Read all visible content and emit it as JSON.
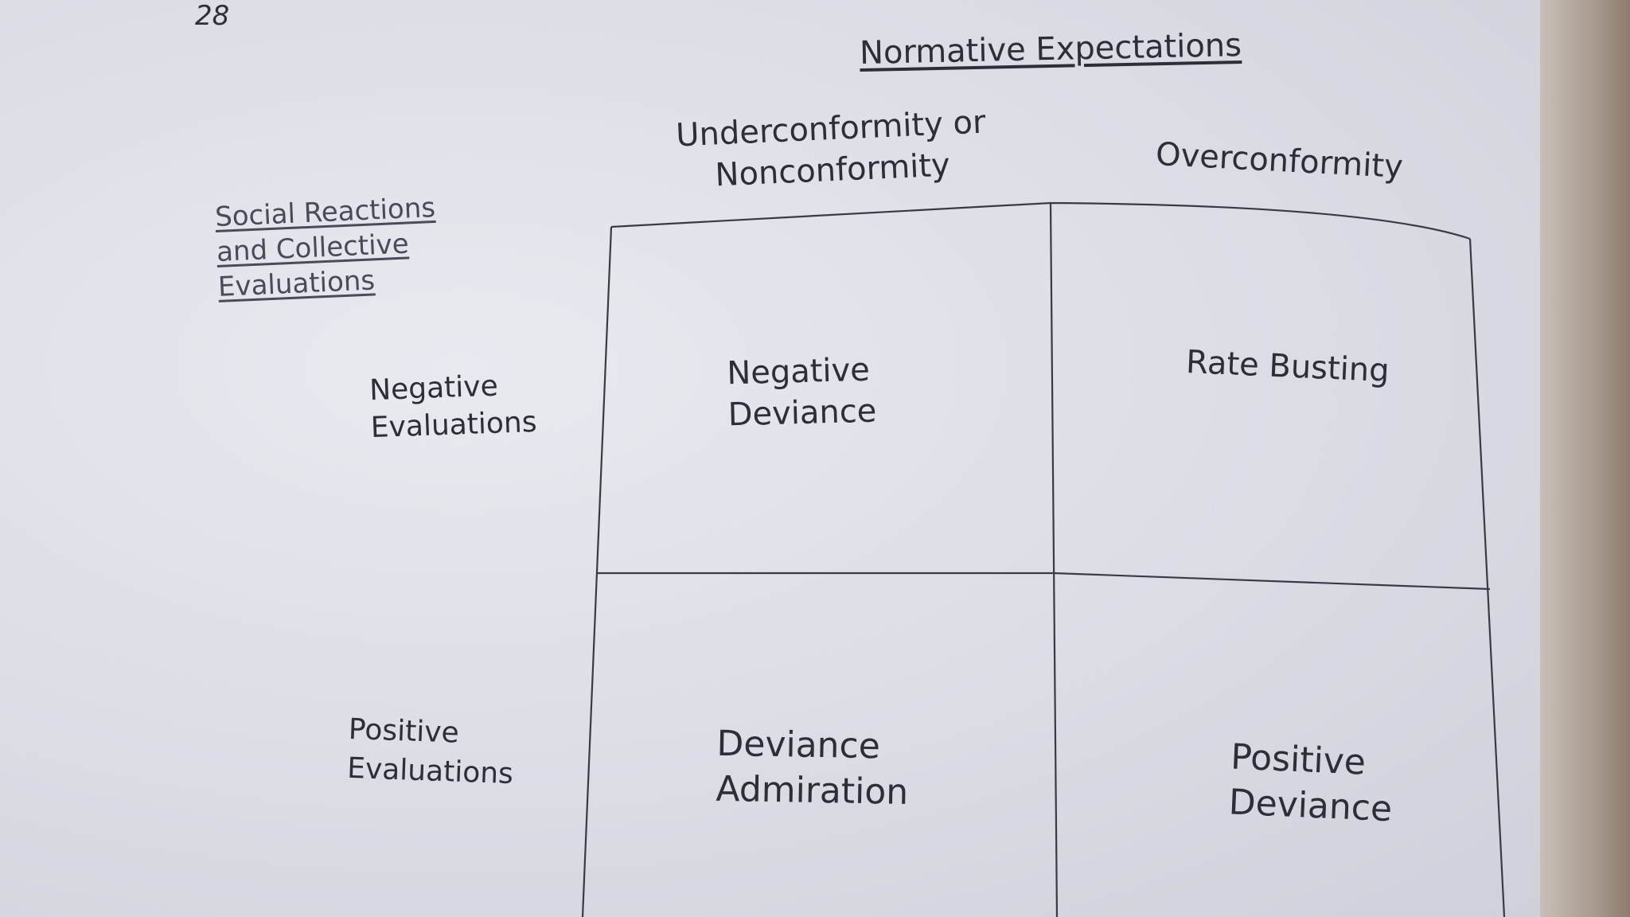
{
  "page_number": "28",
  "title": "Normative Expectations",
  "columns": [
    {
      "label": "Underconformity or Nonconformity"
    },
    {
      "label": "Overconformity"
    }
  ],
  "row_axis_label": "Social Reactions and Collective Evaluations",
  "rows": [
    {
      "label": "Negative Evaluations"
    },
    {
      "label": "Positive Evaluations"
    }
  ],
  "cells": {
    "negative_under": "Negative Deviance",
    "negative_over": "Rate Busting",
    "positive_under": "Deviance Admiration",
    "positive_over": "Positive Deviance"
  },
  "colors": {
    "ink": "#2e2e38",
    "paper": "#e2e2ea",
    "grid_line": "#3a3a44"
  }
}
